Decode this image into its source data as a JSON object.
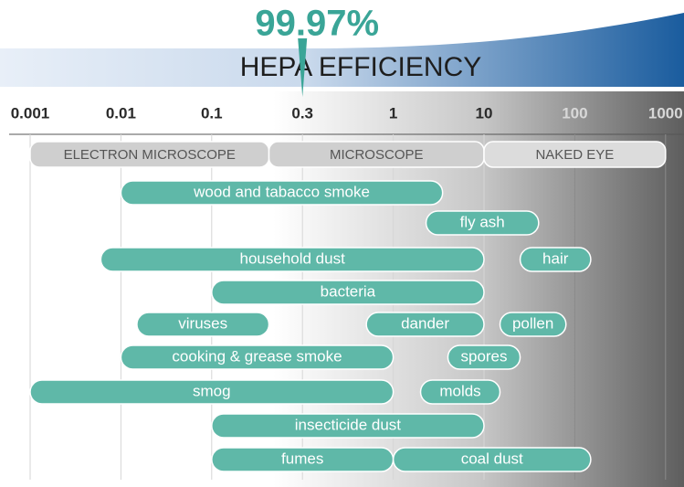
{
  "chart_data": {
    "type": "range",
    "efficiency_label": "99.97%",
    "title": "HEPA EFFICIENCY",
    "marker_at": 0.3,
    "log": true,
    "even_ticks": true,
    "xlim": [
      0.0006,
      1600
    ],
    "xticks": [
      0.001,
      0.01,
      0.1,
      0.3,
      1,
      10,
      100,
      1000
    ],
    "grid": true,
    "bands": [
      {
        "name": "ELECTRON MICROSCOPE",
        "range": [
          0.001,
          0.2
        ]
      },
      {
        "name": "MICROSCOPE",
        "range": [
          0.2,
          10
        ]
      },
      {
        "name": "NAKED EYE",
        "range": [
          10,
          1000
        ]
      }
    ],
    "color": "#5fb8a8",
    "categories": [
      "wood and tabacco smoke",
      "fly ash",
      "household dust",
      "hair",
      "bacteria",
      "viruses",
      "dander",
      "pollen",
      "cooking & grease smoke",
      "spores",
      "smog",
      "molds",
      "insecticide dust",
      "fumes",
      "coal dust"
    ],
    "low": [
      0.01,
      2.3,
      0.006,
      25,
      0.1,
      0.015,
      0.7,
      15,
      0.01,
      4,
      0.001,
      2,
      0.1,
      0.1,
      1
    ],
    "high": [
      3.5,
      40,
      10,
      150,
      10,
      0.2,
      10,
      80,
      1,
      25,
      1,
      15,
      10,
      1,
      150
    ]
  }
}
